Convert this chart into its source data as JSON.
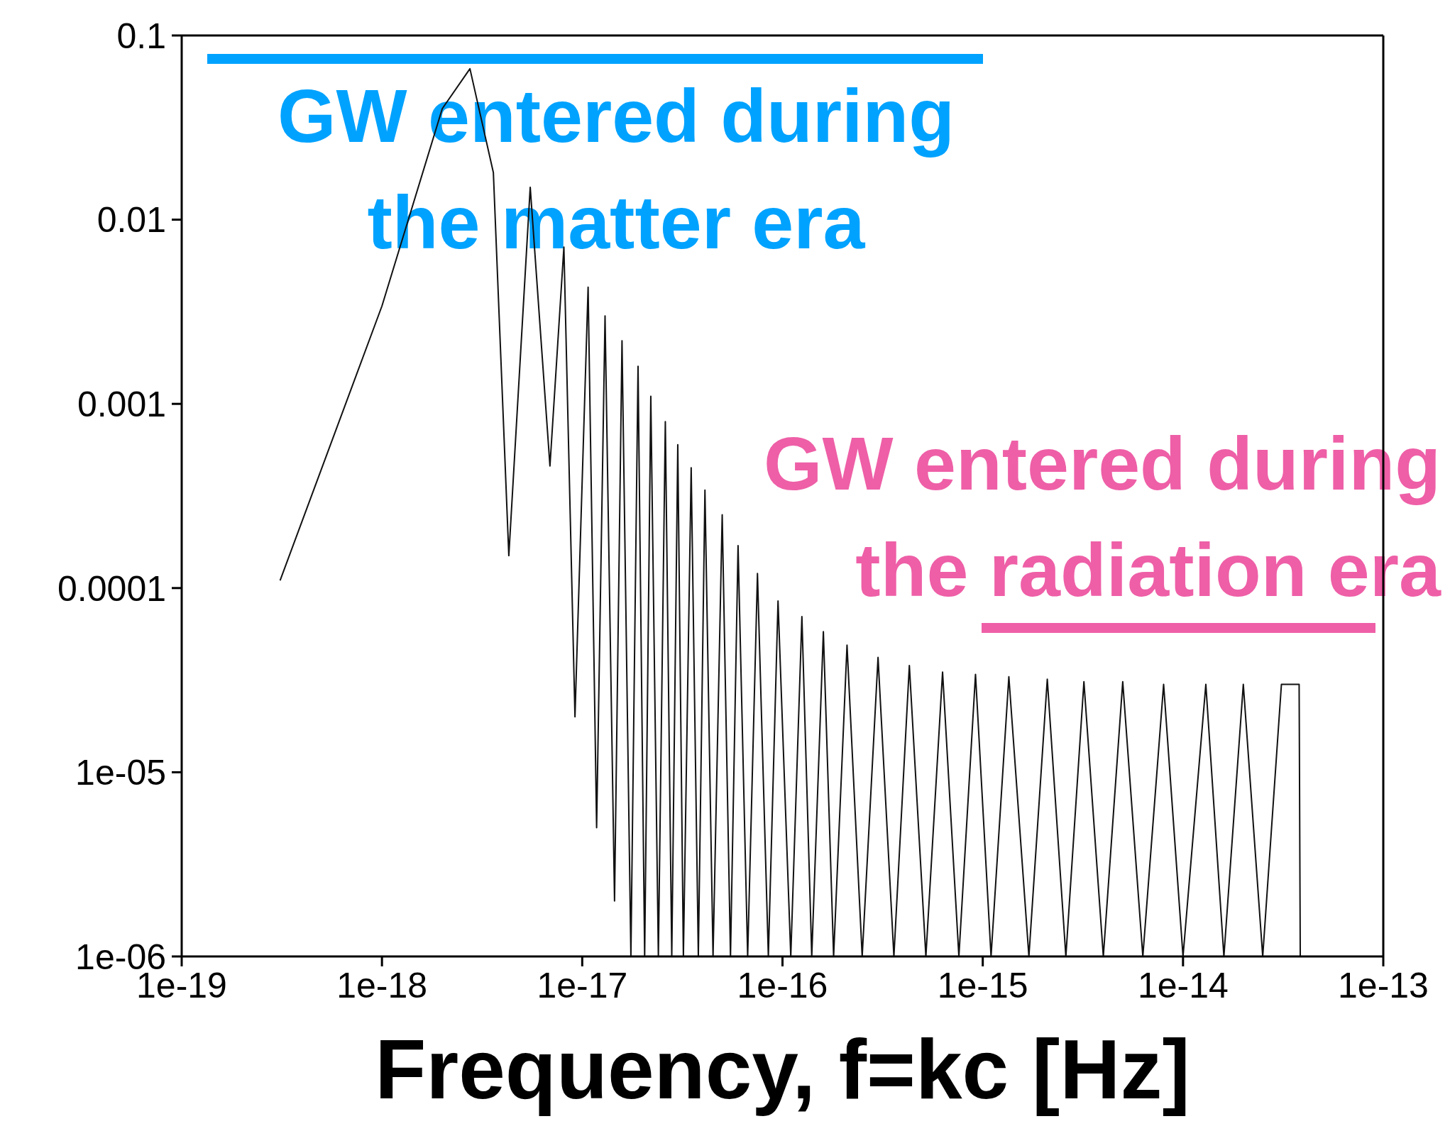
{
  "chart_data": {
    "type": "line",
    "xlabel": "Frequency, f=kc [Hz]",
    "log": "xy",
    "grid": false,
    "legend": false,
    "marker": "none",
    "line_style": "solid",
    "xlim": [
      1e-19,
      1e-13
    ],
    "xticks": [
      {
        "value": 1e-19,
        "label": "1e-19"
      },
      {
        "value": 1e-18,
        "label": "1e-18"
      },
      {
        "value": 1e-17,
        "label": "1e-17"
      },
      {
        "value": 1e-16,
        "label": "1e-16"
      },
      {
        "value": 1e-15,
        "label": "1e-15"
      },
      {
        "value": 1e-14,
        "label": "1e-14"
      },
      {
        "value": 1e-13,
        "label": "1e-13"
      }
    ],
    "ylim": [
      1e-06,
      0.1
    ],
    "yticks": [
      {
        "value": 1e-06,
        "label": "1e-06"
      },
      {
        "value": 1e-05,
        "label": "1e-05"
      },
      {
        "value": 0.0001,
        "label": "0.0001"
      },
      {
        "value": 0.001,
        "label": "0.001"
      },
      {
        "value": 0.01,
        "label": "0.01"
      },
      {
        "value": 0.1,
        "label": "0.1"
      }
    ],
    "annotations": [
      "GW entered during the matter era",
      "GW entered during the radiation era"
    ],
    "series": [
      {
        "color": "#111111",
        "x": [
          3.1e-19,
          1e-18,
          2e-18,
          2.75e-18,
          3.6e-18,
          4.3e-18,
          5.5e-18,
          6.9e-18,
          8.1e-18,
          9.2e-18,
          1.07e-17,
          1.18e-17,
          1.3e-17,
          1.45e-17,
          1.58e-17,
          1.75e-17,
          1.9e-17,
          2.05e-17,
          2.2e-17,
          2.4e-17,
          2.6e-17,
          2.8e-17,
          3e-17,
          3.2e-17,
          3.5e-17,
          3.8e-17,
          4.1e-17,
          4.5e-17,
          5e-17,
          5.5e-17,
          6e-17,
          6.7e-17,
          7.5e-17,
          8.5e-17,
          9.5e-17,
          1.1e-16,
          1.25e-16,
          1.4e-16,
          1.6e-16,
          1.8e-16,
          2.1e-16,
          2.5e-16,
          3e-16,
          3.6e-16,
          4.3e-16,
          5.2e-16,
          6.3e-16,
          7.6e-16,
          9.2e-16,
          1.1e-15,
          1.35e-15,
          1.7e-15,
          2.1e-15,
          2.6e-15,
          3.2e-15,
          4e-15,
          5e-15,
          6.3e-15,
          8e-15,
          1e-14,
          1.3e-14,
          1.6e-14,
          2e-14,
          2.5e-14,
          3.1e-14,
          3.8e-14,
          3.85e-14
        ],
        "values": [
          0.00011,
          0.0034,
          0.04,
          0.066,
          0.018,
          0.00015,
          0.015,
          0.00046,
          0.0071,
          2e-05,
          0.0043,
          5e-06,
          0.003,
          2e-06,
          0.0022,
          1e-06,
          0.0016,
          1e-06,
          0.0011,
          1e-06,
          0.0008,
          1e-06,
          0.0006,
          1e-06,
          0.00045,
          1e-06,
          0.00034,
          1e-06,
          0.00025,
          1e-06,
          0.00017,
          1e-06,
          0.00012,
          1e-06,
          8.5e-05,
          1e-06,
          7e-05,
          1e-06,
          5.8e-05,
          1e-06,
          4.9e-05,
          1e-06,
          4.2e-05,
          1e-06,
          3.8e-05,
          1e-06,
          3.5e-05,
          1e-06,
          3.4e-05,
          1e-06,
          3.3e-05,
          1e-06,
          3.2e-05,
          1e-06,
          3.1e-05,
          1e-06,
          3.1e-05,
          1e-06,
          3e-05,
          1e-06,
          3e-05,
          1e-06,
          3e-05,
          1e-06,
          3e-05,
          3e-05,
          1e-06
        ]
      }
    ]
  }
}
